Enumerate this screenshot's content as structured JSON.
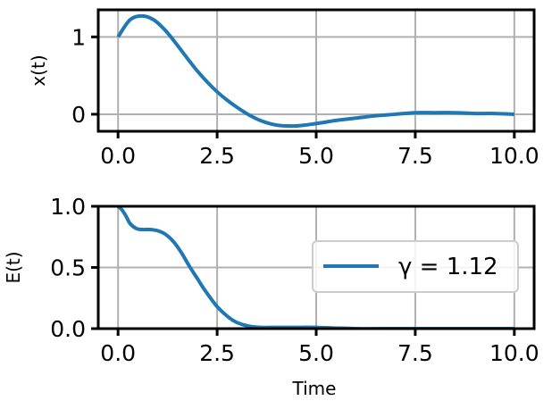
{
  "chart_data": [
    {
      "type": "line",
      "ylabel": "x(t)",
      "xlabel": "",
      "xlim": [
        -0.5,
        10.5
      ],
      "ylim": [
        -0.22,
        1.35
      ],
      "xticks": [
        "0.0",
        "2.5",
        "5.0",
        "7.5",
        "10.0"
      ],
      "xtick_values": [
        0,
        2.5,
        5,
        7.5,
        10
      ],
      "yticks": [
        "0",
        "1"
      ],
      "ytick_values": [
        0,
        1
      ],
      "grid": true,
      "series": [
        {
          "color": "#1f77b4",
          "x": [
            0,
            0.3,
            0.6,
            0.9,
            1.2,
            1.5,
            2.0,
            2.5,
            3.0,
            3.5,
            4.0,
            4.5,
            5.0,
            5.5,
            6.0,
            6.5,
            7.0,
            7.5,
            8.0,
            8.5,
            9.0,
            9.5,
            10.0
          ],
          "y": [
            1.0,
            1.22,
            1.27,
            1.22,
            1.08,
            0.89,
            0.56,
            0.29,
            0.09,
            -0.06,
            -0.14,
            -0.15,
            -0.12,
            -0.08,
            -0.05,
            -0.02,
            0.0,
            0.02,
            0.02,
            0.02,
            0.01,
            0.01,
            0.0
          ]
        }
      ]
    },
    {
      "type": "line",
      "ylabel": "E(t)",
      "xlabel": "Time",
      "xlim": [
        -0.5,
        10.5
      ],
      "ylim": [
        0,
        1
      ],
      "xticks": [
        "0.0",
        "2.5",
        "5.0",
        "7.5",
        "10.0"
      ],
      "xtick_values": [
        0,
        2.5,
        5,
        7.5,
        10
      ],
      "yticks": [
        "0.0",
        "0.5",
        "1.0"
      ],
      "ytick_values": [
        0,
        0.5,
        1.0
      ],
      "grid": true,
      "legend_position": "right",
      "series": [
        {
          "name": "γ = 1.12",
          "color": "#1f77b4",
          "x": [
            0,
            0.1,
            0.2,
            0.3,
            0.45,
            0.6,
            0.8,
            1.0,
            1.2,
            1.4,
            1.6,
            1.8,
            2.0,
            2.2,
            2.5,
            2.8,
            3.0,
            3.3,
            3.6,
            4.0,
            4.5,
            5.0,
            6.0,
            7.0,
            8.0,
            9.0,
            10.0
          ],
          "y": [
            1.0,
            0.97,
            0.92,
            0.86,
            0.82,
            0.81,
            0.81,
            0.8,
            0.77,
            0.71,
            0.62,
            0.51,
            0.41,
            0.31,
            0.18,
            0.09,
            0.05,
            0.02,
            0.01,
            0.01,
            0.01,
            0.01,
            0.0,
            0.0,
            0.0,
            0.0,
            0.0
          ]
        }
      ]
    }
  ]
}
